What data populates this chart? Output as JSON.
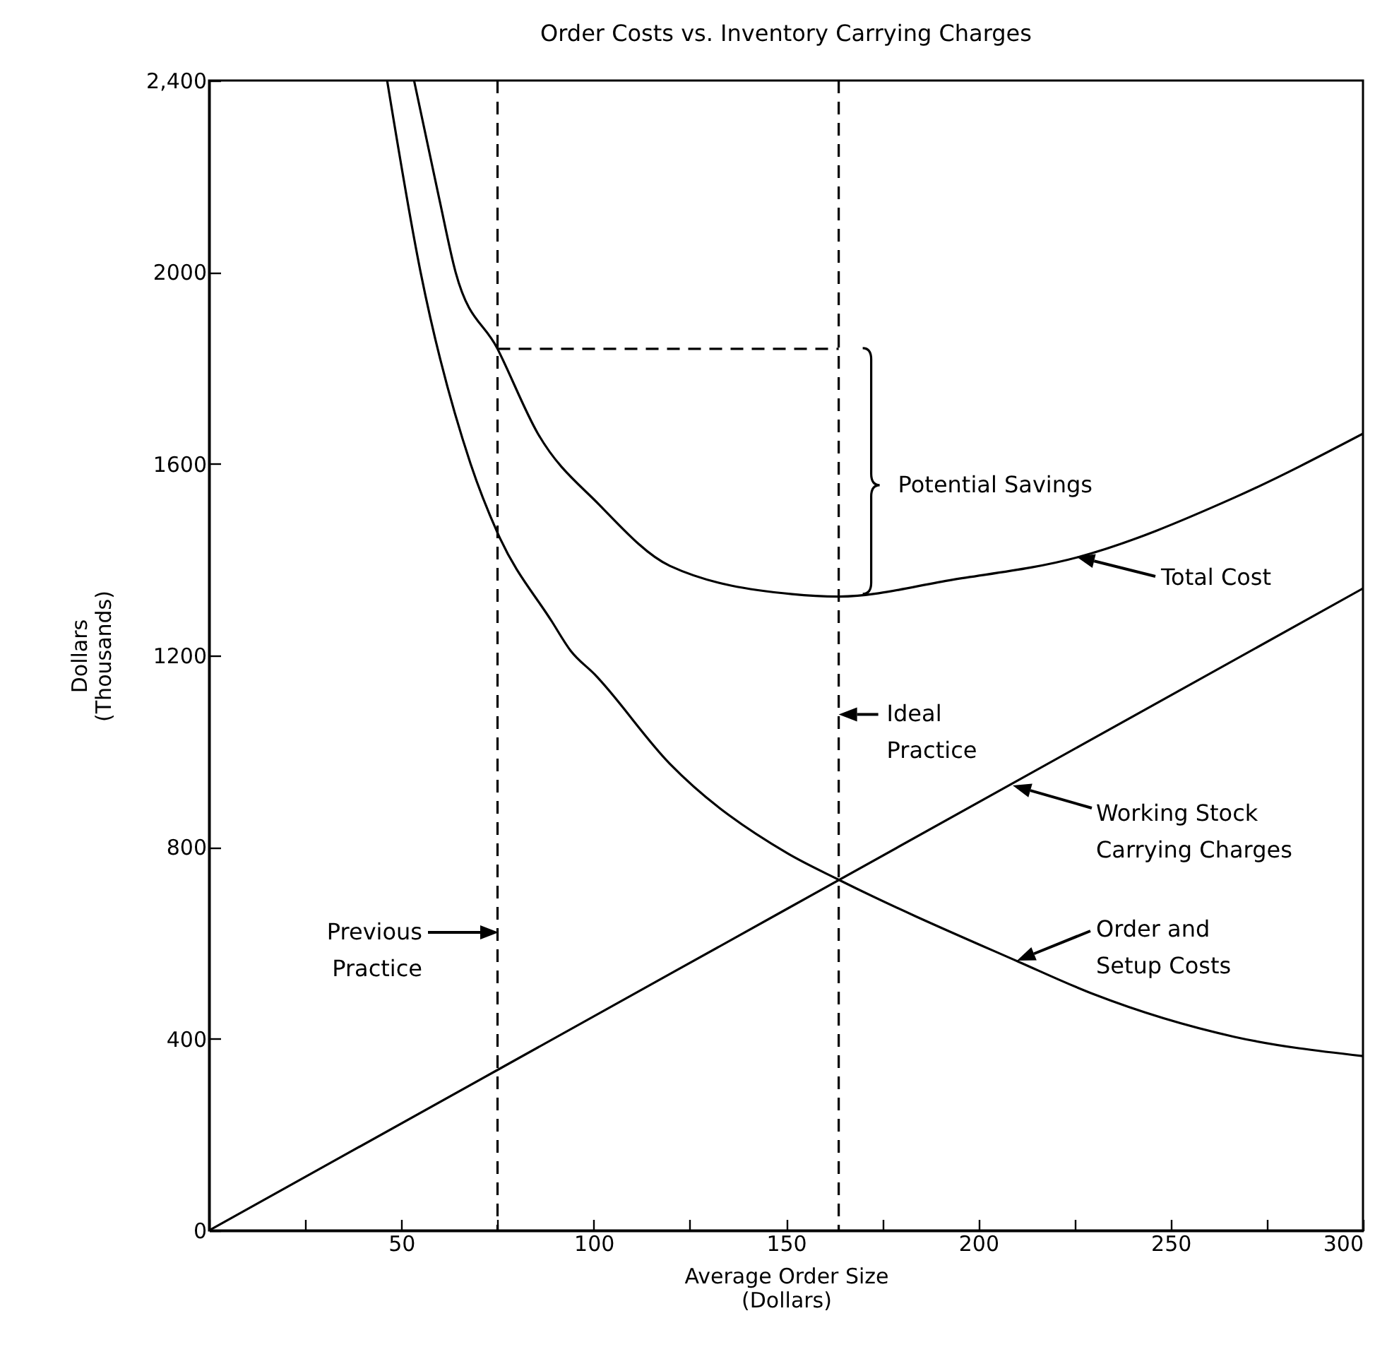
{
  "chart_data": {
    "type": "line",
    "title": "Order Costs vs. Inventory Carrying Charges",
    "xlabel": "Average Order Size\n(Dollars)",
    "ylabel": "Dollars\n(Thousands)",
    "xlim": [
      0,
      300
    ],
    "ylim": [
      0,
      2400
    ],
    "xticks": [
      {
        "value": 0,
        "label": null
      },
      {
        "value": 25,
        "label": null
      },
      50,
      {
        "value": 75,
        "label": null
      },
      100,
      {
        "value": 125,
        "label": null
      },
      150,
      {
        "value": 175,
        "label": null
      },
      200,
      {
        "value": 225,
        "label": null
      },
      250,
      {
        "value": 275,
        "label": null
      },
      300
    ],
    "yticks": [
      0,
      400,
      800,
      1200,
      1600,
      2000,
      {
        "value": 2400,
        "label": "2,400"
      }
    ],
    "series": [
      {
        "color": "#000000",
        "x": [
          0,
          75,
          150,
          300
        ],
        "values": [
          0,
          335,
          670,
          1340
        ]
      },
      {
        "color": "#000000",
        "x": [
          46.3,
          55,
          68,
          75,
          89.2,
          94,
          100.2,
          119.8,
          150.4,
          163.7,
          210.4,
          230,
          266.6,
          300
        ],
        "values": [
          2400,
          2000,
          1600,
          1456,
          1270,
          1210,
          1161,
          974,
          787,
          732,
          561,
          493,
          404,
          364
        ]
      },
      {
        "color": "#000000",
        "x": [
          53.3,
          59.8,
          64.1,
          75,
          85.5,
          101.4,
          119.8,
          151.6,
          163.7,
          193.2,
          225.8,
          266.7,
          300
        ],
        "values": [
          2400,
          2155,
          2000,
          1840,
          1663,
          1515,
          1387,
          1328,
          1323,
          1358,
          1405,
          1530,
          1663
        ]
      },
      {
        "color": "#000000",
        "line_style": "dashed",
        "x": [
          75,
          163.7
        ],
        "values": [
          1840,
          1840
        ]
      }
    ],
    "ref_lines": [
      {
        "axis": "x",
        "value": 75,
        "line_style": "dashed",
        "color": "#000000"
      },
      {
        "axis": "x",
        "value": 163.7,
        "line_style": "dashed",
        "color": "#000000"
      }
    ],
    "annotations": [
      "Previous\nPractice",
      {
        "text": "Ideal\nPractice",
        "x": 163.7,
        "y": 1077
      },
      {
        "text": "Potential Savings",
        "x": 163.7,
        "y": 1585
      },
      "Total Cost",
      "Working Stock\nCarrying Charges",
      "Order and\nSetup Costs"
    ]
  }
}
